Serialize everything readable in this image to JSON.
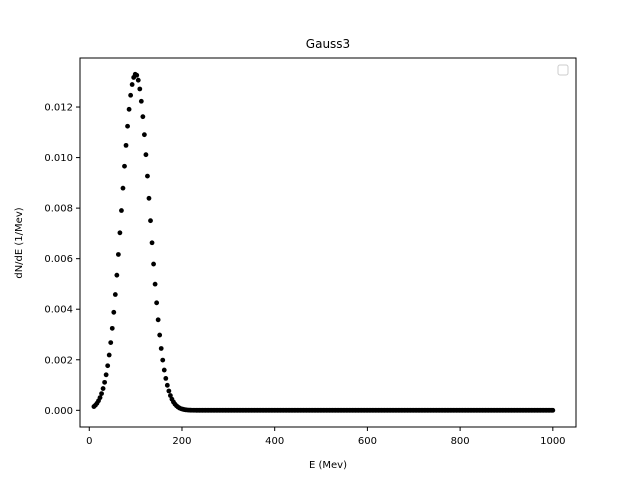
{
  "chart_data": {
    "type": "scatter",
    "title": "Gauss3",
    "xlabel": "E (Mev)",
    "ylabel": "dN/dE (1/Mev)",
    "xlim": [
      -20,
      1050
    ],
    "ylim": [
      -0.00066,
      0.01394
    ],
    "xticks": [
      0,
      200,
      400,
      600,
      800,
      1000
    ],
    "xtick_labels": [
      "0",
      "200",
      "400",
      "600",
      "800",
      "1000"
    ],
    "yticks": [
      0.0,
      0.002,
      0.004,
      0.006,
      0.008,
      0.01,
      0.012
    ],
    "ytick_labels": [
      "0.000",
      "0.002",
      "0.004",
      "0.006",
      "0.008",
      "0.010",
      "0.012"
    ],
    "grid": false,
    "legend": {
      "placement": "top-right",
      "entries": []
    },
    "marker_color": "#000000",
    "series": [
      {
        "x_start": 10,
        "x_end": 1000,
        "x_step": 3.3,
        "peak_x": 100,
        "peak_y": 0.0133,
        "sigma": 30,
        "point_count": 301
      }
    ]
  }
}
